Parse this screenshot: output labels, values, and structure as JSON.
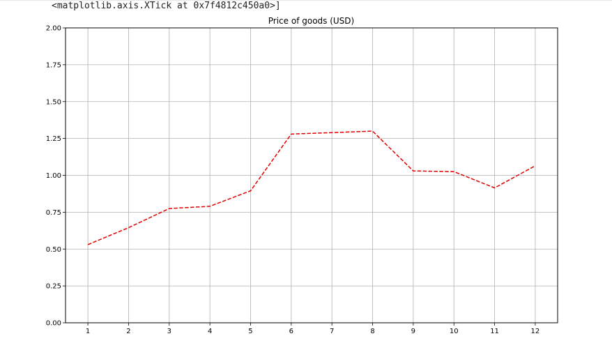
{
  "output_text": "<matplotlib.axis.XTick at 0x7f4812c450a0>]",
  "chart_data": {
    "type": "line",
    "title": "Price of goods (USD)",
    "xlabel": "",
    "ylabel": "",
    "x": [
      1,
      2,
      3,
      4,
      5,
      6,
      7,
      8,
      9,
      10,
      11,
      12
    ],
    "series": [
      {
        "values": [
          0.53,
          0.645,
          0.775,
          0.79,
          0.895,
          1.28,
          1.29,
          1.3,
          1.03,
          1.025,
          0.915,
          1.065
        ],
        "color": "#e00000",
        "style": "dashed"
      }
    ],
    "xticks": [
      "1",
      "2",
      "3",
      "4",
      "5",
      "6",
      "7",
      "8",
      "9",
      "10",
      "11",
      "12"
    ],
    "yticks": [
      "0.00",
      "0.25",
      "0.50",
      "0.75",
      "1.00",
      "1.25",
      "1.50",
      "1.75",
      "2.00"
    ],
    "ytick_values": [
      0,
      0.25,
      0.5,
      0.75,
      1.0,
      1.25,
      1.5,
      1.75,
      2.0
    ],
    "xlim": [
      0.45,
      12.55
    ],
    "ylim": [
      0,
      2
    ],
    "grid": true,
    "legend": "none"
  }
}
